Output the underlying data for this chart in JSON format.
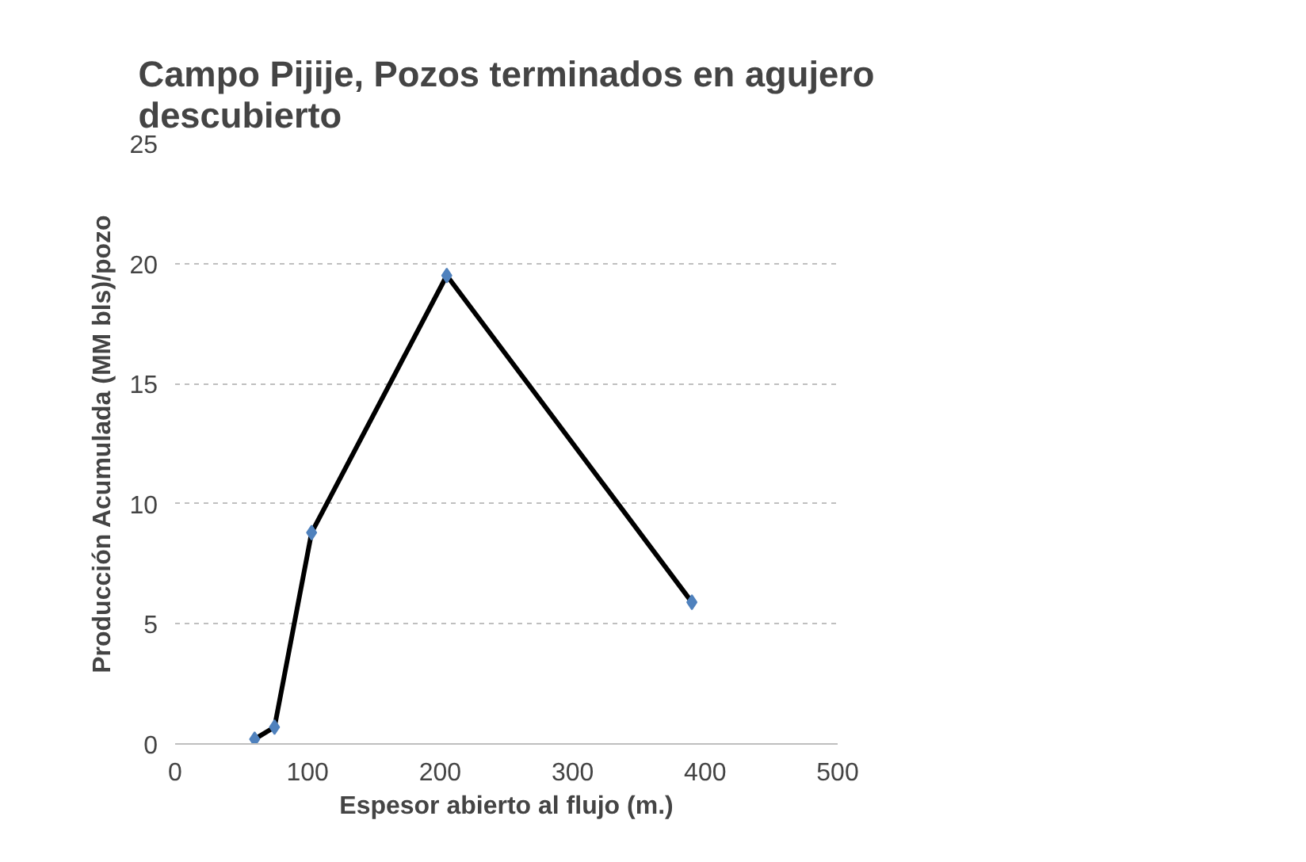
{
  "chart_data": {
    "type": "line",
    "title": "Campo Pijije, Pozos terminados en agujero descubierto",
    "xlabel": "Espesor abierto al flujo (m.)",
    "ylabel": "Producción Acumulada (MM bls)/pozo",
    "x": [
      60,
      75,
      103,
      205,
      390
    ],
    "series": [
      {
        "color": "#000000",
        "colors": [
          "#4f81bd",
          "#4f81bd",
          "#4f81bd",
          "#4f81bd",
          "#4f81bd"
        ],
        "values": [
          0.2,
          0.7,
          8.8,
          19.5,
          5.9
        ]
      }
    ],
    "xlim": [
      0,
      500
    ],
    "xticks": [
      0,
      100,
      200,
      300,
      400,
      500
    ],
    "ylim": [
      0,
      25
    ],
    "yticks": [
      0,
      5,
      10,
      15,
      20,
      25
    ],
    "grid": "y",
    "marker": "diamond",
    "line_style": "solid"
  }
}
